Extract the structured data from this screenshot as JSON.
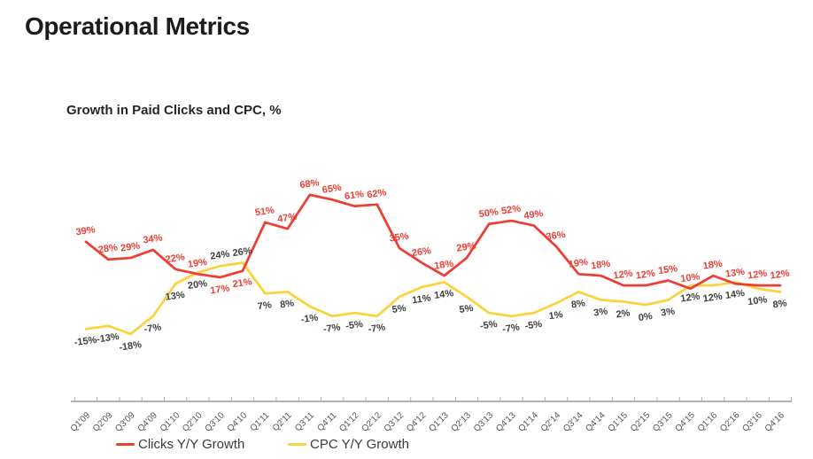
{
  "page": {
    "title": "Operational Metrics",
    "subtitle": "Growth in Paid Clicks and CPC, %"
  },
  "chart_data": {
    "type": "line",
    "title": "Growth in Paid Clicks and CPC, %",
    "unit": "%",
    "categories": [
      "Q1'09",
      "Q2'09",
      "Q3'09",
      "Q4'09",
      "Q1'10",
      "Q2'10",
      "Q3'10",
      "Q4'10",
      "Q1'11",
      "Q2'11",
      "Q3'11",
      "Q4'11",
      "Q1'12",
      "Q2'12",
      "Q3'12",
      "Q4'12",
      "Q1'13",
      "Q2'13",
      "Q3'13",
      "Q4'13",
      "Q1'14",
      "Q2'14",
      "Q3'14",
      "Q4'14",
      "Q1'15",
      "Q2'15",
      "Q3'15",
      "Q4'15",
      "Q1'16",
      "Q2'16",
      "Q3'16",
      "Q4'16"
    ],
    "series": [
      {
        "name": "CPC Y/Y Growth",
        "color": "#fcd23c",
        "label_color": "#3f3f3f",
        "values": [
          -15,
          -13,
          -18,
          -7,
          13,
          20,
          24,
          26,
          7,
          8,
          -1,
          -7,
          -5,
          -7,
          5,
          11,
          14,
          5,
          -5,
          -7,
          -5,
          1,
          8,
          3,
          2,
          0,
          3,
          12,
          12,
          14,
          10,
          8
        ],
        "label_side": [
          "down",
          "down",
          "down",
          "down",
          "down",
          "down",
          "up",
          "up",
          "down",
          "down",
          "down",
          "down",
          "down",
          "down",
          "down",
          "down",
          "down",
          "down",
          "down",
          "down",
          "down",
          "down",
          "down",
          "down",
          "down",
          "down",
          "down",
          "down",
          "down",
          "down",
          "down",
          "down"
        ]
      },
      {
        "name": "Clicks Y/Y Growth",
        "color": "#ee3d33",
        "label_color": "#ee3d33",
        "values": [
          39,
          28,
          29,
          34,
          22,
          19,
          17,
          21,
          51,
          47,
          68,
          65,
          61,
          62,
          35,
          26,
          18,
          29,
          50,
          52,
          49,
          36,
          19,
          18,
          12,
          12,
          15,
          10,
          18,
          13,
          12,
          12
        ],
        "label_side": [
          "up",
          "up",
          "up",
          "up",
          "up",
          "up",
          "down",
          "down",
          "up",
          "up",
          "up",
          "up",
          "up",
          "up",
          "up",
          "up",
          "up",
          "up",
          "up",
          "up",
          "up",
          "up",
          "up",
          "up",
          "up",
          "up",
          "up",
          "up",
          "up",
          "up",
          "up",
          "up"
        ]
      }
    ],
    "ylim": [
      -25,
      80
    ],
    "grid": false,
    "legend_position": "bottom",
    "axis_color": "#b0b0b0",
    "tick_label_color": "#555555"
  }
}
